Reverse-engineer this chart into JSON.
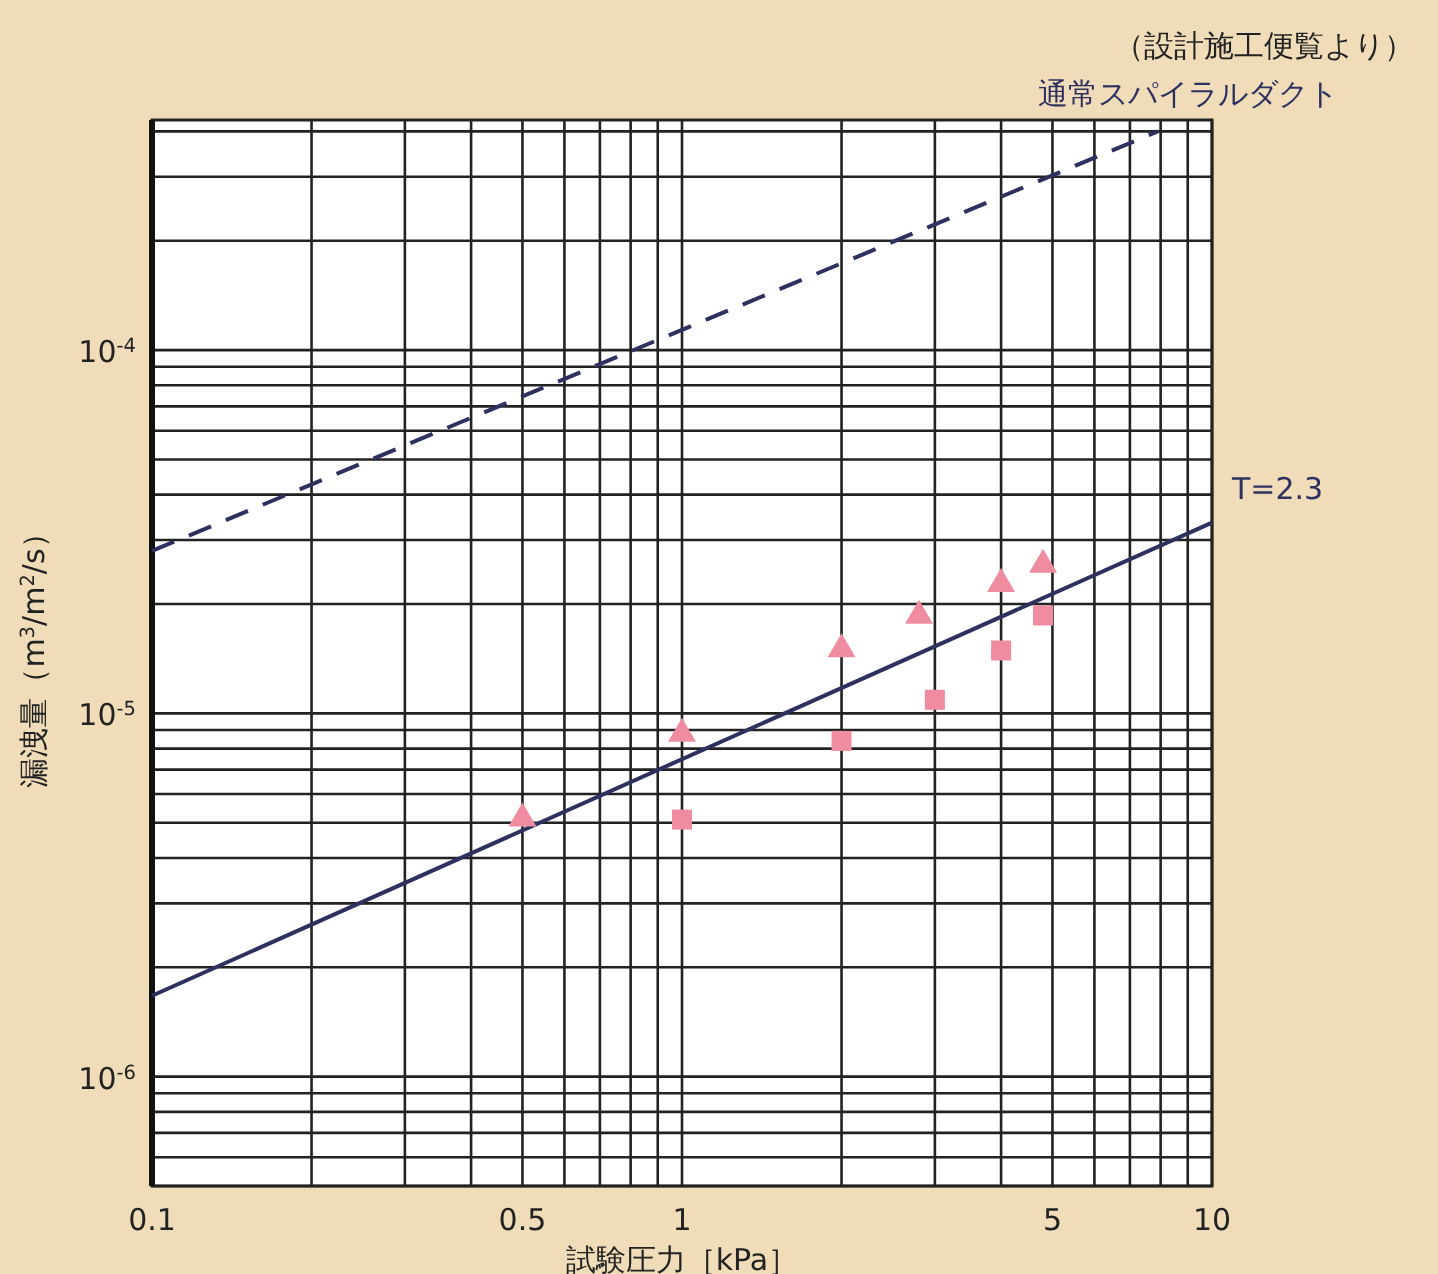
{
  "chart_data": {
    "type": "line",
    "xlabel": "試験圧力［kPa］",
    "ylabel": "漏洩量（m$^{3}$/m$^{2}$/s）",
    "log": "xy",
    "grid": true,
    "legend": false,
    "xlim": [
      0.1,
      10
    ],
    "xticks": [
      0.1,
      0.5,
      1,
      5,
      10
    ],
    "ylim": [
      5e-07,
      0.00043
    ],
    "yticks": [
      {
        "value": 1e-06,
        "label": "10$^{-6}$"
      },
      {
        "value": 1e-05,
        "label": "10$^{-5}$"
      },
      {
        "value": 0.0001,
        "label": "10$^{-4}$"
      }
    ],
    "series": [
      {
        "name": "通常スパイラルダクト",
        "type": "line",
        "line_style": "dashed",
        "color": "#2e3060",
        "x": [
          0.1,
          7.9
        ],
        "values": [
          2.8e-05,
          0.0004
        ]
      },
      {
        "name": "T=2.3",
        "type": "line",
        "line_style": "solid",
        "color": "#2e3060",
        "x": [
          0.1,
          10
        ],
        "values": [
          1.67e-06,
          3.35e-05
        ]
      },
      {
        "type": "scatter",
        "marker": "triangle",
        "color": "#f08ca0",
        "x": [
          0.5,
          1,
          2,
          2.8,
          4,
          4.8
        ],
        "values": [
          5.2e-06,
          8.9e-06,
          1.52e-05,
          1.88e-05,
          2.3e-05,
          2.6e-05
        ]
      },
      {
        "type": "scatter",
        "marker": "square",
        "color": "#f08ca0",
        "x": [
          1,
          2,
          3,
          4,
          4.8
        ],
        "values": [
          5.1e-06,
          8.4e-06,
          1.09e-05,
          1.49e-05,
          1.86e-05
        ]
      }
    ],
    "annotations": [
      "（設計施工便覧より）"
    ]
  }
}
